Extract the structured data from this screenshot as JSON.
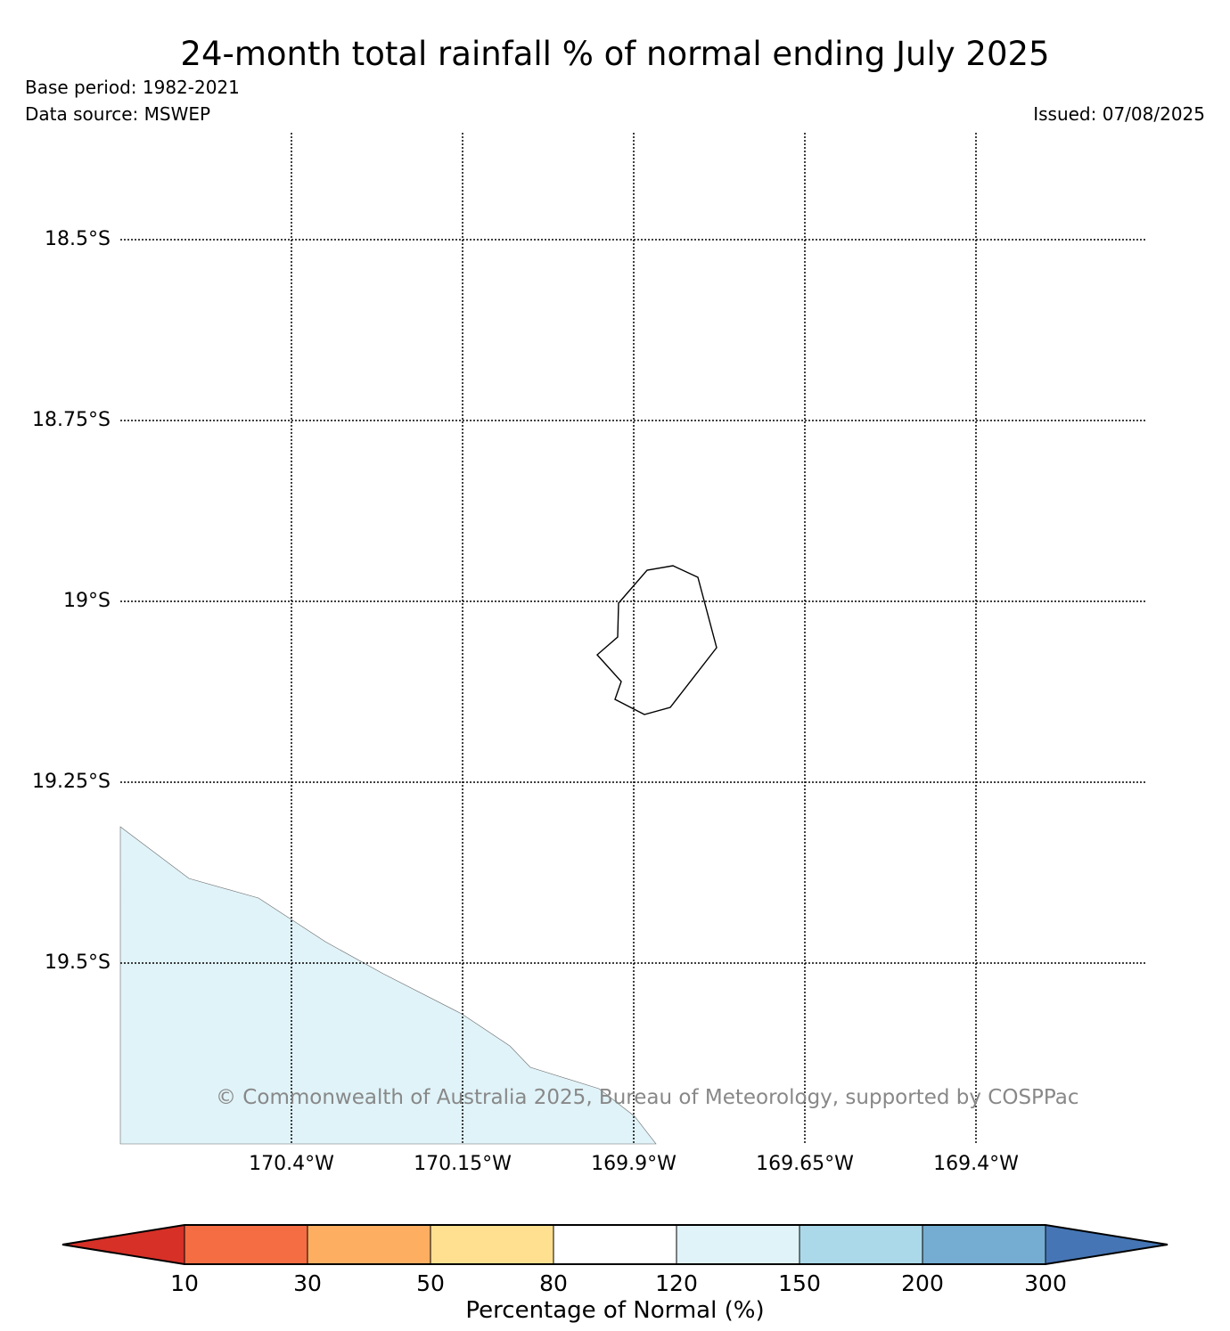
{
  "header": {
    "title": "24-month total rainfall % of normal ending July 2025",
    "base_period": "Base period: 1982-2021",
    "data_source": "Data source: MSWEP",
    "issued": "Issued: 07/08/2025"
  },
  "map": {
    "latitude_labels": [
      "18.5°S",
      "18.75°S",
      "19°S",
      "19.25°S",
      "19.5°S"
    ],
    "longitude_labels": [
      "170.4°W",
      "170.15°W",
      "169.9°W",
      "169.65°W",
      "169.4°W"
    ],
    "gridline_style": "dotted",
    "island_outline": "Niue",
    "shaded_region_category": "120-150",
    "shaded_region_color": "#e0f3f8",
    "copyright": "© Commonwealth of Australia 2025, Bureau of Meteorology, supported by COSPPac"
  },
  "colorbar": {
    "label": "Percentage of Normal (%)",
    "ticks": [
      "10",
      "30",
      "50",
      "80",
      "120",
      "150",
      "200",
      "300"
    ],
    "colors": [
      "#d73027",
      "#f46d43",
      "#fdae61",
      "#fee090",
      "#ffffff",
      "#e0f3f8",
      "#abd9e9",
      "#74add1",
      "#4575b4"
    ],
    "extend": "both"
  }
}
